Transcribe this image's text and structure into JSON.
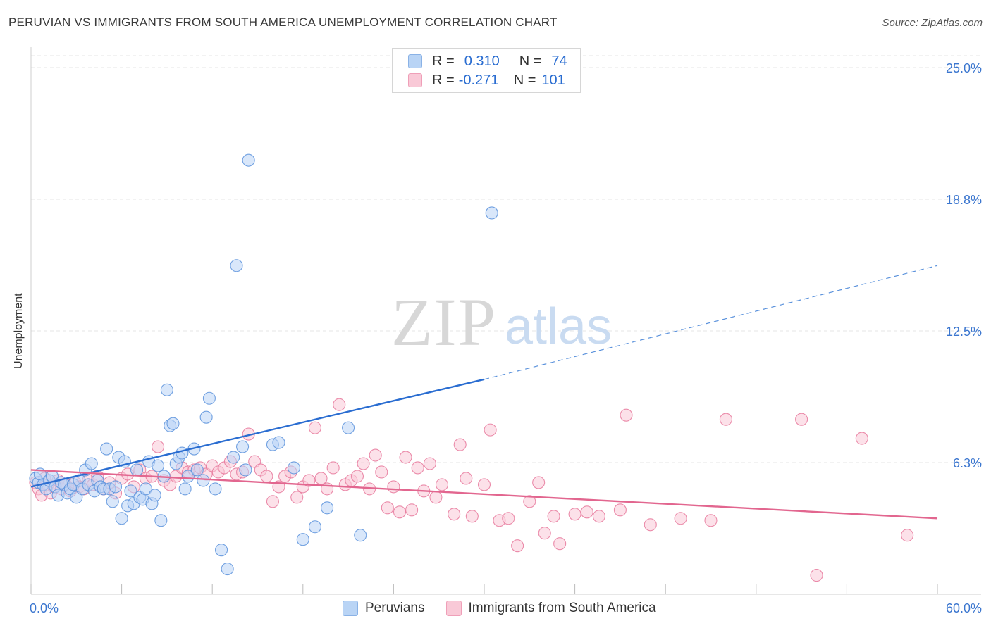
{
  "header": {
    "title": "PERUVIAN VS IMMIGRANTS FROM SOUTH AMERICA UNEMPLOYMENT CORRELATION CHART",
    "source": "Source: ZipAtlas.com"
  },
  "watermark": {
    "zip": "ZIP",
    "atlas": "atlas"
  },
  "legend": {
    "rows": [
      {
        "r_label": "R =",
        "r_value": "0.310",
        "n_label": "N =",
        "n_value": "74",
        "color": "#b9d4f5"
      },
      {
        "r_label": "R =",
        "r_value": "-0.271",
        "n_label": "N =",
        "n_value": "101",
        "color": "#f9c9d7"
      }
    ],
    "bottom": [
      {
        "label": "Peruvians",
        "color": "#b9d4f5"
      },
      {
        "label": "Immigrants from South America",
        "color": "#f9c9d7"
      }
    ]
  },
  "chart_data": {
    "type": "scatter",
    "title": "PERUVIAN VS IMMIGRANTS FROM SOUTH AMERICA UNEMPLOYMENT CORRELATION CHART",
    "xlabel": "",
    "ylabel": "Unemployment",
    "xlim": [
      0,
      60
    ],
    "ylim": [
      0,
      25
    ],
    "x_tick_labels": {
      "min": "0.0%",
      "max": "60.0%"
    },
    "y_ticks": [
      {
        "value": 6.25,
        "label": "6.3%"
      },
      {
        "value": 12.5,
        "label": "12.5%"
      },
      {
        "value": 18.75,
        "label": "18.8%"
      },
      {
        "value": 25,
        "label": "25.0%"
      }
    ],
    "grid": true,
    "series": [
      {
        "name": "Peruvians",
        "color": "#5b92dc",
        "fill": "#b9d4f5",
        "R": 0.31,
        "N": 74,
        "trend": {
          "x0": 0,
          "y0": 5.1,
          "x1": 30,
          "y1": 10.2,
          "dash_x1": 60,
          "dash_y1": 15.6
        },
        "points": [
          [
            0.3,
            5.5
          ],
          [
            0.5,
            5.3
          ],
          [
            0.6,
            5.7
          ],
          [
            0.8,
            5.2
          ],
          [
            1.0,
            5.0
          ],
          [
            1.2,
            5.4
          ],
          [
            1.4,
            5.6
          ],
          [
            1.6,
            5.1
          ],
          [
            1.8,
            4.7
          ],
          [
            2.0,
            5.3
          ],
          [
            2.2,
            5.2
          ],
          [
            2.4,
            4.8
          ],
          [
            2.6,
            5.0
          ],
          [
            2.8,
            5.2
          ],
          [
            3.0,
            4.6
          ],
          [
            3.2,
            5.4
          ],
          [
            3.4,
            5.0
          ],
          [
            3.6,
            5.9
          ],
          [
            3.8,
            5.2
          ],
          [
            4.0,
            6.2
          ],
          [
            4.2,
            4.9
          ],
          [
            4.4,
            5.4
          ],
          [
            4.6,
            5.1
          ],
          [
            4.8,
            5.0
          ],
          [
            5.0,
            6.9
          ],
          [
            5.2,
            5.0
          ],
          [
            5.4,
            4.4
          ],
          [
            5.6,
            5.1
          ],
          [
            5.8,
            6.5
          ],
          [
            6.0,
            3.6
          ],
          [
            6.2,
            6.3
          ],
          [
            6.4,
            4.2
          ],
          [
            6.6,
            4.9
          ],
          [
            6.8,
            4.3
          ],
          [
            7.0,
            5.9
          ],
          [
            7.2,
            4.6
          ],
          [
            7.4,
            4.5
          ],
          [
            7.6,
            5.0
          ],
          [
            7.8,
            6.3
          ],
          [
            8.0,
            4.3
          ],
          [
            8.2,
            4.7
          ],
          [
            8.4,
            6.1
          ],
          [
            8.6,
            3.5
          ],
          [
            8.8,
            5.6
          ],
          [
            9.0,
            9.7
          ],
          [
            9.2,
            8.0
          ],
          [
            9.4,
            8.1
          ],
          [
            9.6,
            6.2
          ],
          [
            9.8,
            6.5
          ],
          [
            10.0,
            6.7
          ],
          [
            10.2,
            5.0
          ],
          [
            10.4,
            5.6
          ],
          [
            10.8,
            6.9
          ],
          [
            11.0,
            5.9
          ],
          [
            11.4,
            5.4
          ],
          [
            11.6,
            8.4
          ],
          [
            11.8,
            9.3
          ],
          [
            12.2,
            5.0
          ],
          [
            12.6,
            2.1
          ],
          [
            13.0,
            1.2
          ],
          [
            13.4,
            6.5
          ],
          [
            13.6,
            15.6
          ],
          [
            14.0,
            7.0
          ],
          [
            14.2,
            5.9
          ],
          [
            14.4,
            20.6
          ],
          [
            16.0,
            7.1
          ],
          [
            16.4,
            7.2
          ],
          [
            17.4,
            6.0
          ],
          [
            18.0,
            2.6
          ],
          [
            18.8,
            3.2
          ],
          [
            19.6,
            4.1
          ],
          [
            21.0,
            7.9
          ],
          [
            21.8,
            2.8
          ],
          [
            30.5,
            18.1
          ]
        ]
      },
      {
        "name": "Immigrants from South America",
        "color": "#e8799c",
        "fill": "#f9c9d7",
        "R": -0.271,
        "N": 101,
        "trend": {
          "x0": 0,
          "y0": 5.9,
          "x1": 60,
          "y1": 3.6
        },
        "points": [
          [
            0.3,
            5.3
          ],
          [
            0.5,
            5.0
          ],
          [
            0.7,
            4.7
          ],
          [
            0.9,
            5.5
          ],
          [
            1.1,
            5.2
          ],
          [
            1.3,
            4.8
          ],
          [
            1.5,
            5.1
          ],
          [
            1.8,
            5.4
          ],
          [
            2.0,
            5.0
          ],
          [
            2.3,
            5.2
          ],
          [
            2.6,
            4.9
          ],
          [
            2.9,
            5.3
          ],
          [
            3.2,
            5.1
          ],
          [
            3.5,
            5.0
          ],
          [
            3.8,
            5.4
          ],
          [
            4.1,
            5.2
          ],
          [
            4.4,
            5.6
          ],
          [
            4.8,
            5.0
          ],
          [
            5.2,
            5.3
          ],
          [
            5.6,
            4.8
          ],
          [
            6.0,
            5.5
          ],
          [
            6.4,
            5.7
          ],
          [
            6.8,
            5.1
          ],
          [
            7.2,
            5.9
          ],
          [
            7.6,
            5.5
          ],
          [
            8.0,
            5.6
          ],
          [
            8.4,
            7.0
          ],
          [
            8.8,
            5.4
          ],
          [
            9.2,
            5.2
          ],
          [
            9.6,
            5.6
          ],
          [
            10.0,
            6.0
          ],
          [
            10.4,
            5.8
          ],
          [
            10.8,
            5.9
          ],
          [
            11.2,
            6.0
          ],
          [
            11.6,
            5.7
          ],
          [
            12.0,
            6.1
          ],
          [
            12.4,
            5.8
          ],
          [
            12.8,
            6.0
          ],
          [
            13.2,
            6.3
          ],
          [
            13.6,
            5.7
          ],
          [
            14.0,
            5.8
          ],
          [
            14.4,
            7.6
          ],
          [
            14.8,
            6.3
          ],
          [
            15.2,
            5.9
          ],
          [
            15.6,
            5.6
          ],
          [
            16.0,
            4.4
          ],
          [
            16.4,
            5.1
          ],
          [
            16.8,
            5.6
          ],
          [
            17.2,
            5.8
          ],
          [
            17.6,
            4.6
          ],
          [
            18.0,
            5.1
          ],
          [
            18.4,
            5.4
          ],
          [
            18.8,
            7.9
          ],
          [
            19.2,
            5.5
          ],
          [
            19.6,
            5.0
          ],
          [
            20.0,
            6.0
          ],
          [
            20.4,
            9.0
          ],
          [
            20.8,
            5.2
          ],
          [
            21.2,
            5.4
          ],
          [
            21.6,
            5.6
          ],
          [
            22.0,
            6.2
          ],
          [
            22.4,
            5.0
          ],
          [
            22.8,
            6.6
          ],
          [
            23.2,
            5.8
          ],
          [
            23.6,
            4.1
          ],
          [
            24.0,
            5.1
          ],
          [
            24.4,
            3.9
          ],
          [
            24.8,
            6.5
          ],
          [
            25.2,
            4.0
          ],
          [
            25.6,
            6.0
          ],
          [
            26.0,
            4.9
          ],
          [
            26.4,
            6.2
          ],
          [
            26.8,
            4.6
          ],
          [
            27.2,
            5.2
          ],
          [
            28.0,
            3.8
          ],
          [
            28.4,
            7.1
          ],
          [
            28.8,
            5.5
          ],
          [
            29.2,
            3.7
          ],
          [
            30.0,
            5.2
          ],
          [
            30.4,
            7.8
          ],
          [
            31.0,
            3.5
          ],
          [
            31.6,
            3.6
          ],
          [
            32.2,
            2.3
          ],
          [
            33.0,
            4.4
          ],
          [
            33.6,
            5.3
          ],
          [
            34.0,
            2.9
          ],
          [
            34.6,
            3.7
          ],
          [
            35.0,
            2.4
          ],
          [
            36.0,
            3.8
          ],
          [
            36.8,
            3.9
          ],
          [
            37.6,
            3.7
          ],
          [
            39.0,
            4.0
          ],
          [
            39.4,
            8.5
          ],
          [
            41.0,
            3.3
          ],
          [
            43.0,
            3.6
          ],
          [
            45.0,
            3.5
          ],
          [
            46.0,
            8.3
          ],
          [
            51.0,
            8.3
          ],
          [
            52.0,
            0.9
          ],
          [
            55.0,
            7.4
          ],
          [
            58.0,
            2.8
          ]
        ]
      }
    ]
  }
}
